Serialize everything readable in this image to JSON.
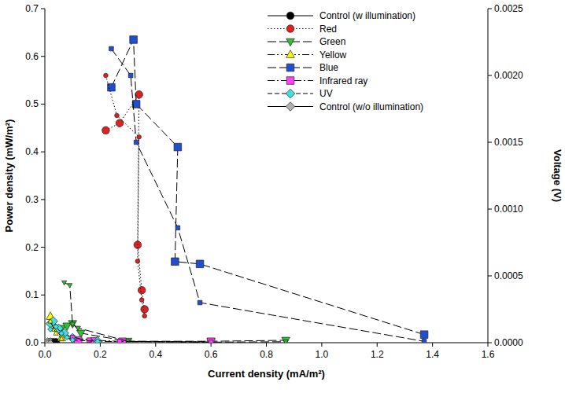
{
  "chart_data": {
    "type": "line",
    "x_label": "Current density (mA/m²)",
    "y_label": "Power density (mW/m²)",
    "y2_label": "Voltage (V)",
    "xlim": [
      0,
      1.6
    ],
    "xticks": [
      {
        "value": 0,
        "label": "0.0"
      },
      0.2,
      0.4,
      0.6,
      0.8,
      {
        "value": 1,
        "label": "1.0"
      },
      1.2,
      1.4,
      1.6
    ],
    "ylim": [
      0,
      0.7
    ],
    "yticks": [
      {
        "value": 0,
        "label": "0.0"
      },
      0.1,
      0.2,
      0.3,
      0.4,
      0.5,
      0.6,
      0.7
    ],
    "y2lim": [
      0,
      0.0025
    ],
    "y2ticks": [
      {
        "value": 0,
        "label": "0.0000"
      },
      {
        "value": 0.0005,
        "label": "0.0005"
      },
      {
        "value": 0.001,
        "label": "0.0010"
      },
      {
        "value": 0.0015,
        "label": "0.0015"
      },
      {
        "value": 0.002,
        "label": "0.0020"
      },
      {
        "value": 0.0025,
        "label": "0.0025"
      }
    ],
    "legend": "upper right",
    "grid": false,
    "series": [
      {
        "name": "Control (w illumination)",
        "color": "#000000",
        "marker": "circle",
        "line_style": "solid",
        "x": [
          0.02,
          0.03,
          0.04
        ],
        "values": [
          0.001,
          0.001,
          0.001
        ]
      },
      {
        "name": "Red",
        "color": "#e02020",
        "marker": "circle",
        "line_style": "dotted",
        "x": [
          0.22,
          0.27,
          0.34,
          0.335,
          0.35,
          0.36
        ],
        "values": [
          0.445,
          0.46,
          0.52,
          0.205,
          0.11,
          0.07
        ]
      },
      {
        "name": "Green",
        "color": "#30c030",
        "marker": "triangle-down",
        "line_style": "longdash",
        "x": [
          0.06,
          0.08,
          0.1,
          0.13,
          0.3,
          0.6,
          0.87
        ],
        "values": [
          0.03,
          0.035,
          0.04,
          0.02,
          0.003,
          0.003,
          0.005
        ]
      },
      {
        "name": "Yellow",
        "color": "#ffff00",
        "marker": "triangle-up",
        "line_style": "dashdotdot",
        "x": [
          0.02,
          0.04,
          0.06
        ],
        "values": [
          0.055,
          0.03,
          0.01
        ]
      },
      {
        "name": "Blue",
        "color": "#1f4fd0",
        "marker": "square",
        "line_style": "longdash",
        "x": [
          0.24,
          0.32,
          0.33,
          0.48,
          0.47,
          0.56,
          1.37
        ],
        "values": [
          0.535,
          0.635,
          0.5,
          0.41,
          0.17,
          0.165,
          0.017
        ]
      },
      {
        "name": "Infrared ray",
        "color": "#ff40ff",
        "marker": "square",
        "line_style": "dashdot",
        "x": [
          0.12,
          0.18,
          0.28,
          0.6
        ],
        "values": [
          0.005,
          0.003,
          0.002,
          0.002
        ]
      },
      {
        "name": "UV",
        "color": "#40e0e0",
        "marker": "diamond",
        "line_style": "dashed",
        "x": [
          0.02,
          0.03,
          0.05,
          0.07,
          0.1,
          0.19
        ],
        "values": [
          0.04,
          0.045,
          0.03,
          0.02,
          0.01,
          0.003
        ]
      },
      {
        "name": "Control (w/o illumination)",
        "color": "#b0b0b0",
        "marker": "diamond",
        "line_style": "solid",
        "x": [
          0.01,
          0.02
        ],
        "values": [
          0.001,
          0.001
        ]
      },
      {
        "name": "Control (w illumination)",
        "color": "#000000",
        "marker": "circle",
        "line_style": "solid",
        "axis": "y2",
        "x": [
          0.02,
          0.03,
          0.04
        ],
        "values": [
          3e-06,
          3e-06,
          3e-06
        ]
      },
      {
        "name": "Red",
        "color": "#e02020",
        "marker": "circle",
        "line_style": "dotted",
        "axis": "y2",
        "x": [
          0.22,
          0.26,
          0.34,
          0.335,
          0.35,
          0.36
        ],
        "values": [
          0.002,
          0.0017,
          0.00154,
          0.00061,
          0.00032,
          0.0002
        ]
      },
      {
        "name": "Green",
        "color": "#30c030",
        "marker": "triangle-down",
        "line_style": "longdash",
        "axis": "y2",
        "x": [
          0.07,
          0.09,
          0.1,
          0.12,
          0.3,
          0.6,
          0.87
        ],
        "values": [
          0.00045,
          0.00043,
          0.00014,
          0.00011,
          1e-05,
          4e-06,
          7e-06
        ]
      },
      {
        "name": "Yellow",
        "color": "#ffff00",
        "marker": "triangle-up",
        "line_style": "dashdotdot",
        "axis": "y2",
        "x": [
          0.02,
          0.04,
          0.06
        ],
        "values": [
          0.00016,
          7e-05,
          3e-05
        ]
      },
      {
        "name": "Blue",
        "color": "#1f4fd0",
        "marker": "square",
        "line_style": "longdash",
        "axis": "y2",
        "x": [
          0.24,
          0.31,
          0.33,
          0.48,
          0.56,
          1.37
        ],
        "values": [
          0.0022,
          0.002,
          0.0015,
          0.00086,
          0.0003,
          1e-05
        ]
      },
      {
        "name": "Infrared ray",
        "color": "#ff40ff",
        "marker": "square",
        "line_style": "dashdot",
        "axis": "y2",
        "x": [
          0.1,
          0.16,
          0.27,
          0.6
        ],
        "values": [
          4e-05,
          2e-05,
          1e-05,
          4e-06
        ]
      },
      {
        "name": "UV",
        "color": "#40e0e0",
        "marker": "diamond",
        "line_style": "dashed",
        "axis": "y2",
        "x": [
          0.02,
          0.04,
          0.06,
          0.08,
          0.1,
          0.19
        ],
        "values": [
          0.0001,
          0.00012,
          7e-05,
          4e-05,
          2e-05,
          1e-05
        ]
      },
      {
        "name": "Control (w/o illumination)",
        "color": "#b0b0b0",
        "marker": "diamond",
        "line_style": "solid",
        "axis": "y2",
        "x": [
          0.01,
          0.02
        ],
        "values": [
          3e-06,
          3e-06
        ]
      }
    ]
  }
}
